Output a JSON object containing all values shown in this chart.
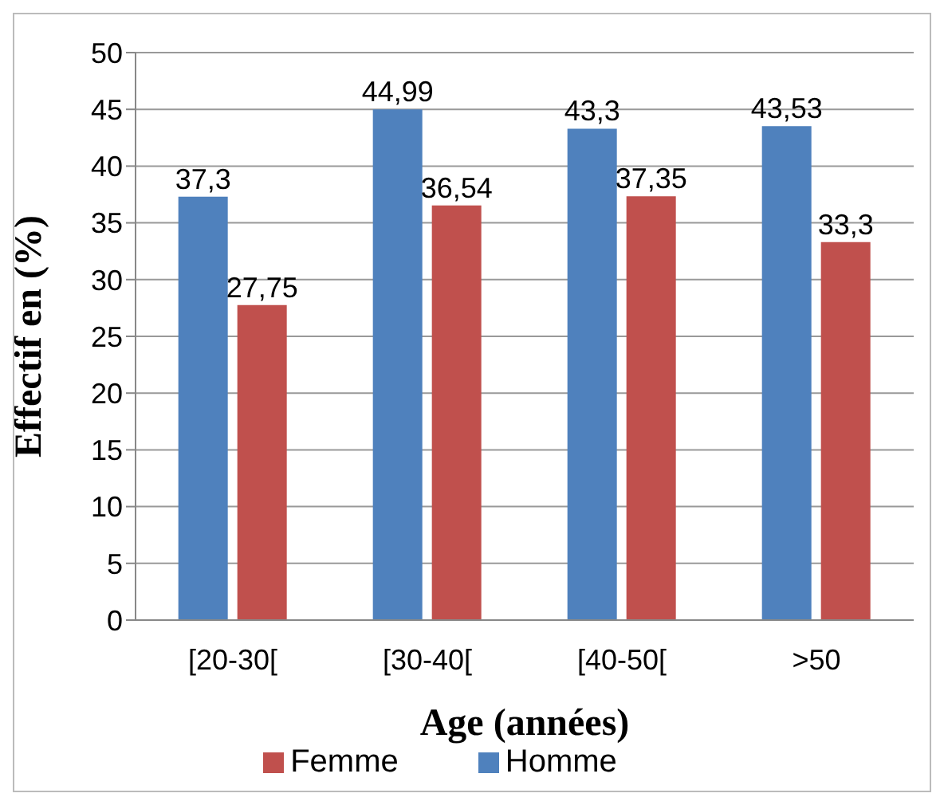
{
  "chart_data": {
    "type": "bar",
    "xlabel": "Age (années)",
    "ylabel": "Effectif en (%)",
    "categories": [
      "[20-30[",
      "[30-40[",
      "[40-50[",
      ">50"
    ],
    "series": [
      {
        "name": "Homme",
        "color": "#4f81bd",
        "values": [
          37.3,
          44.99,
          43.3,
          43.53
        ],
        "value_labels": [
          "37,3",
          "44,99",
          "43,3",
          "43,53"
        ]
      },
      {
        "name": "Femme",
        "color": "#c0504d",
        "values": [
          27.75,
          36.54,
          37.35,
          33.3
        ],
        "value_labels": [
          "27,75",
          "36,54",
          "37,35",
          "33,3"
        ]
      }
    ],
    "ylim": [
      0,
      50
    ],
    "yticks": [
      0,
      5,
      10,
      15,
      20,
      25,
      30,
      35,
      40,
      45,
      50
    ],
    "grid": "y",
    "legend": "bottom"
  }
}
